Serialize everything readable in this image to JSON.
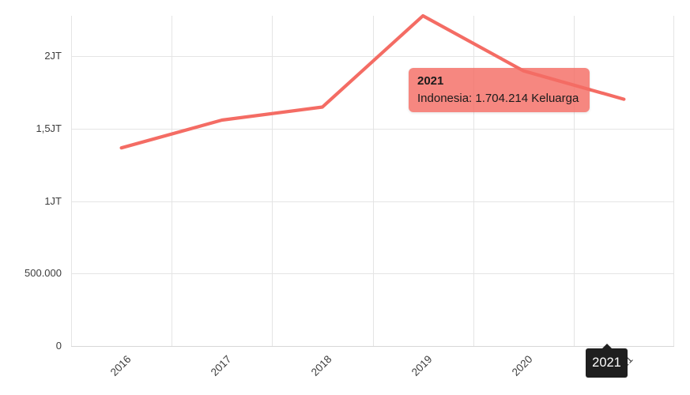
{
  "chart": {
    "tooltip": {
      "title": "2021",
      "body": "Indonesia: 1.704.214 Keluarga"
    },
    "selected_year_badge": "2021",
    "colors": {
      "line": "#f46c64",
      "tooltip_bg": "rgba(244,108,100,0.82)",
      "grid": "#e4e4e4",
      "axis_text": "#3d3d3d",
      "badge_bg": "#1f1f1f",
      "badge_text": "#ffffff",
      "tooltip_text": "#1b1b1b"
    }
  },
  "chart_data": {
    "type": "line",
    "categories": [
      "2016",
      "2017",
      "2018",
      "2019",
      "2020",
      "2021"
    ],
    "series": [
      {
        "name": "Indonesia",
        "values": [
          1368000,
          1560000,
          1650000,
          2280000,
          1900000,
          1704214
        ]
      }
    ],
    "unit": "Keluarga",
    "title": "",
    "xlabel": "",
    "ylabel": "",
    "yticks": [
      {
        "label": "0",
        "value": 0
      },
      {
        "label": "500.000",
        "value": 500000
      },
      {
        "label": "1JT",
        "value": 1000000
      },
      {
        "label": "1,5JT",
        "value": 1500000
      },
      {
        "label": "2JT",
        "value": 2000000
      }
    ],
    "ylim": [
      0,
      2280000
    ],
    "grid": true,
    "legend": false,
    "selected_point": {
      "category": "2021",
      "value": 1704214
    }
  }
}
